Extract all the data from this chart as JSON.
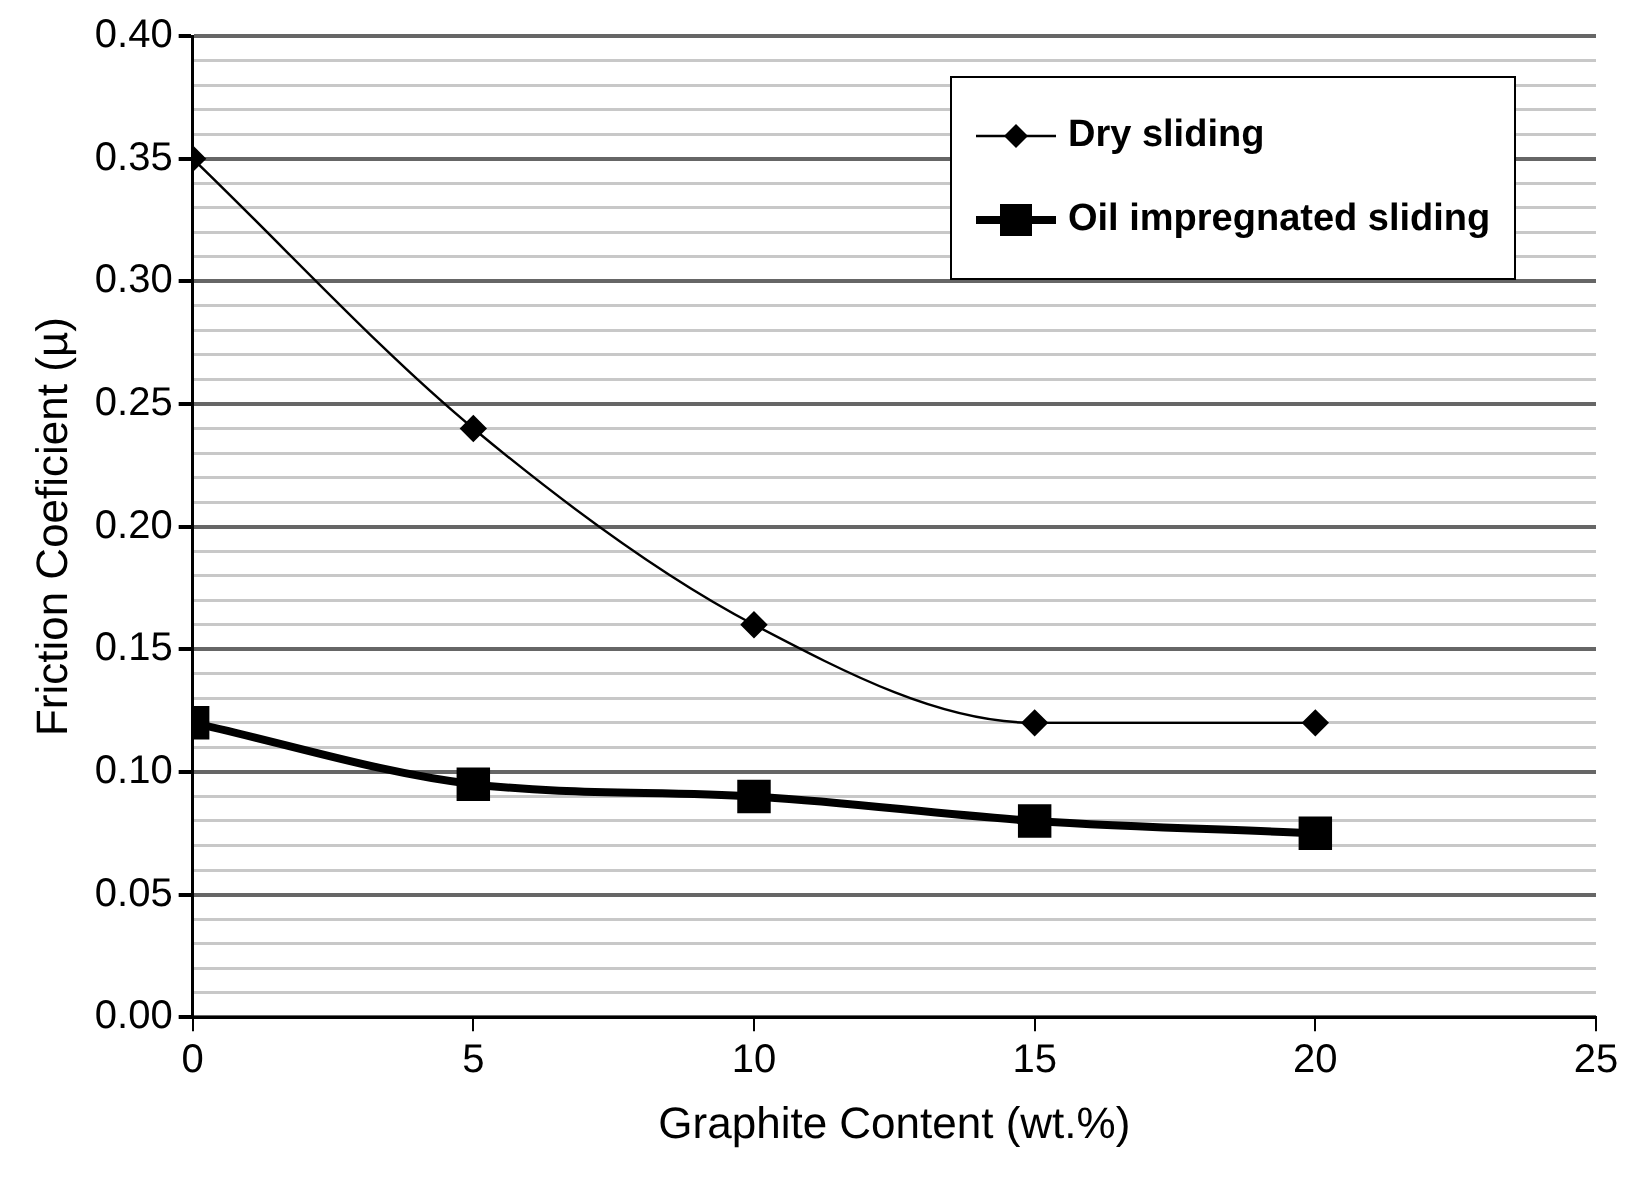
{
  "chart_data": {
    "type": "line",
    "xlabel": "Graphite Content (wt.%)",
    "ylabel": "Friction Coeficient (µ)",
    "x": [
      0,
      5,
      10,
      15,
      20
    ],
    "series": [
      {
        "name": "Dry sliding",
        "color": "#000000",
        "marker": "diamond",
        "values": [
          0.35,
          0.24,
          0.16,
          0.12,
          0.12
        ]
      },
      {
        "name": "Oil impregnated sliding",
        "color": "#000000",
        "marker": "square",
        "values": [
          0.12,
          0.095,
          0.09,
          0.08,
          0.075
        ]
      }
    ],
    "xlim": [
      0,
      25
    ],
    "xticks": [
      0,
      5,
      10,
      15,
      20,
      25
    ],
    "ylim": [
      0,
      0.4
    ],
    "yticks": [
      {
        "value": 0,
        "label": "0.00"
      },
      {
        "value": 0.01,
        "label": null
      },
      {
        "value": 0.02,
        "label": null
      },
      {
        "value": 0.03,
        "label": null
      },
      {
        "value": 0.04,
        "label": null
      },
      {
        "value": 0.05,
        "label": "0.05"
      },
      {
        "value": 0.06,
        "label": null
      },
      {
        "value": 0.07,
        "label": null
      },
      {
        "value": 0.08,
        "label": null
      },
      {
        "value": 0.09,
        "label": null
      },
      {
        "value": 0.1,
        "label": "0.10"
      },
      {
        "value": 0.11,
        "label": null
      },
      {
        "value": 0.12,
        "label": null
      },
      {
        "value": 0.13,
        "label": null
      },
      {
        "value": 0.14,
        "label": null
      },
      {
        "value": 0.15,
        "label": "0.15"
      },
      {
        "value": 0.16,
        "label": null
      },
      {
        "value": 0.17,
        "label": null
      },
      {
        "value": 0.18,
        "label": null
      },
      {
        "value": 0.19,
        "label": null
      },
      {
        "value": 0.2,
        "label": "0.20"
      },
      {
        "value": 0.21,
        "label": null
      },
      {
        "value": 0.22,
        "label": null
      },
      {
        "value": 0.23,
        "label": null
      },
      {
        "value": 0.24,
        "label": null
      },
      {
        "value": 0.25,
        "label": "0.25"
      },
      {
        "value": 0.26,
        "label": null
      },
      {
        "value": 0.27,
        "label": null
      },
      {
        "value": 0.28,
        "label": null
      },
      {
        "value": 0.29,
        "label": null
      },
      {
        "value": 0.3,
        "label": "0.30"
      },
      {
        "value": 0.31,
        "label": null
      },
      {
        "value": 0.32,
        "label": null
      },
      {
        "value": 0.33,
        "label": null
      },
      {
        "value": 0.34,
        "label": null
      },
      {
        "value": 0.35,
        "label": "0.35"
      },
      {
        "value": 0.36,
        "label": null
      },
      {
        "value": 0.37,
        "label": null
      },
      {
        "value": 0.38,
        "label": null
      },
      {
        "value": 0.39,
        "label": null
      },
      {
        "value": 0.4,
        "label": "0.40"
      }
    ],
    "grid": "y",
    "legend": "top right",
    "line_style": "solid"
  }
}
